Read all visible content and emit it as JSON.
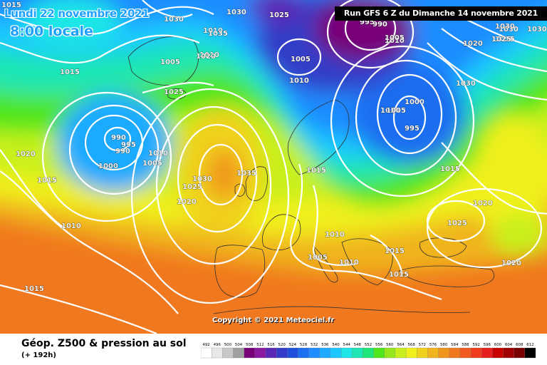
{
  "header": {
    "valid_date": "Lundi 22 novembre 2021",
    "local_time": "8:00 locale",
    "run_banner": "Run GFS 6 Z du Dimanche 14 novembre 2021"
  },
  "footer": {
    "copyright": "Copyright © 2021 Meteociel.fr",
    "parameter_title": "Géop. Z500 & pression au sol",
    "lead_time": "(+ 192h)"
  },
  "color_scale": {
    "tick_labels": [
      "492",
      "496",
      "500",
      "504",
      "508",
      "512",
      "516",
      "520",
      "524",
      "528",
      "532",
      "536",
      "540",
      "544",
      "548",
      "552",
      "556",
      "560",
      "564",
      "568",
      "572",
      "576",
      "580",
      "584",
      "588",
      "592",
      "596",
      "600",
      "604",
      "608",
      "612"
    ],
    "colors": [
      "#ffffff",
      "#e8e8e8",
      "#c8c8c8",
      "#a0a0a0",
      "#780078",
      "#8c1aa0",
      "#5a28b4",
      "#323cc8",
      "#1e50dc",
      "#1e6ef0",
      "#1e8cff",
      "#1eaaff",
      "#1ec8ff",
      "#1ee6e6",
      "#1ee6b4",
      "#1ee678",
      "#50e61e",
      "#96e61e",
      "#c8f01e",
      "#f0f01e",
      "#f0d21e",
      "#f0b41e",
      "#f0961e",
      "#f0781e",
      "#f05a1e",
      "#f03c1e",
      "#e61e1e",
      "#c80000",
      "#a00000",
      "#780000",
      "#000000"
    ]
  },
  "isobar_labels": [
    {
      "text": "1015"
    },
    {
      "text": "1000"
    },
    {
      "text": "1030"
    },
    {
      "text": "1030"
    },
    {
      "text": "1025"
    },
    {
      "text": "995"
    },
    {
      "text": "990"
    },
    {
      "text": "1010"
    },
    {
      "text": "1035"
    },
    {
      "text": "1010"
    },
    {
      "text": "1005"
    },
    {
      "text": "1010"
    },
    {
      "text": "1030"
    },
    {
      "text": "1030"
    },
    {
      "text": "1015"
    },
    {
      "text": "1025"
    },
    {
      "text": "1020"
    },
    {
      "text": "1030"
    },
    {
      "text": "1030"
    },
    {
      "text": "1025"
    },
    {
      "text": "1005"
    },
    {
      "text": "1010"
    },
    {
      "text": "1020"
    },
    {
      "text": "1005"
    },
    {
      "text": "1025"
    },
    {
      "text": "1010"
    },
    {
      "text": "1005"
    },
    {
      "text": "1000"
    },
    {
      "text": "995"
    },
    {
      "text": "1020"
    },
    {
      "text": "990"
    },
    {
      "text": "995"
    },
    {
      "text": "990"
    },
    {
      "text": "1000"
    },
    {
      "text": "1005"
    },
    {
      "text": "1010"
    },
    {
      "text": "1020"
    },
    {
      "text": "1015"
    },
    {
      "text": "1010"
    },
    {
      "text": "1030"
    },
    {
      "text": "1035"
    },
    {
      "text": "1025"
    },
    {
      "text": "1020"
    },
    {
      "text": "1015"
    },
    {
      "text": "1015"
    },
    {
      "text": "1010"
    },
    {
      "text": "1005"
    },
    {
      "text": "1010"
    },
    {
      "text": "1015"
    },
    {
      "text": "1015"
    },
    {
      "text": "1020"
    },
    {
      "text": "1025"
    },
    {
      "text": "1020"
    },
    {
      "text": "1015"
    }
  ]
}
